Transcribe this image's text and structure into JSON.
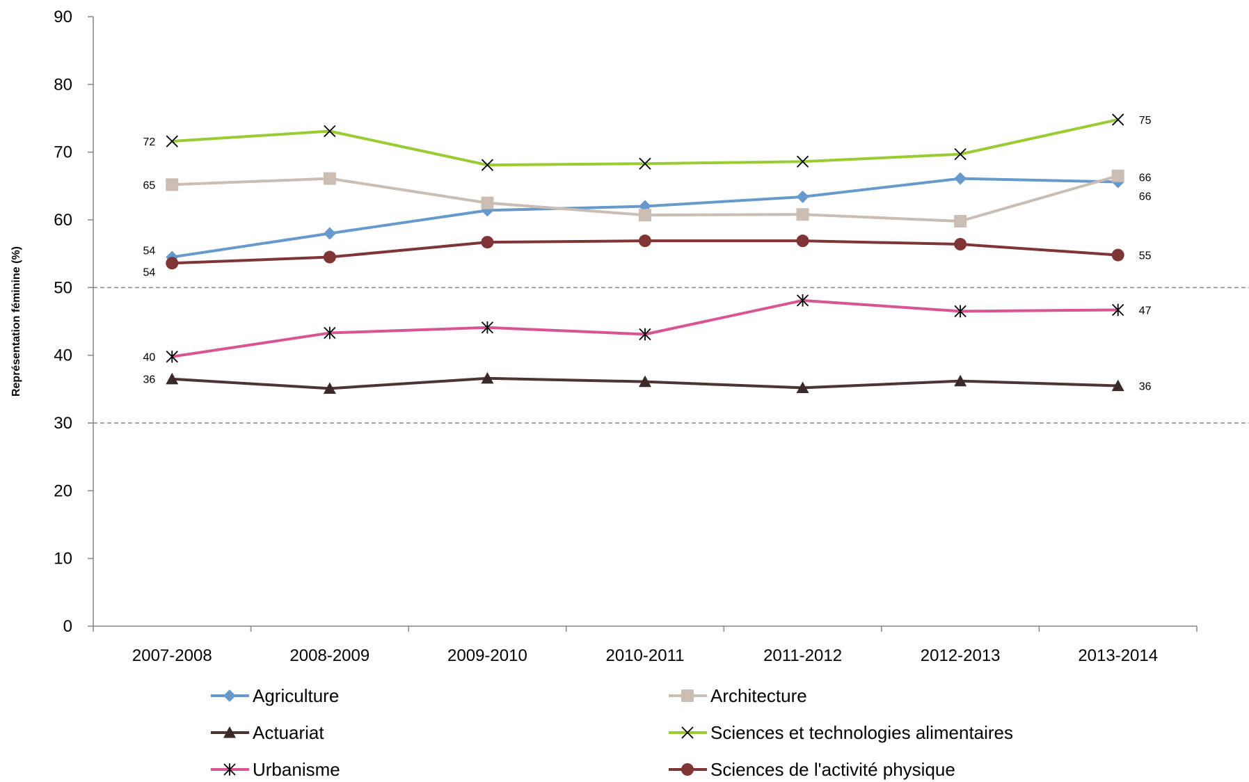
{
  "chart_data": {
    "type": "line",
    "title": "",
    "xlabel": "",
    "ylabel": "Représentation féminine (%)",
    "ylim": [
      0,
      90
    ],
    "y_ticks": [
      "0",
      "10",
      "20",
      "30",
      "40",
      "50",
      "60",
      "70",
      "80",
      "90"
    ],
    "categories": [
      "2007-2008",
      "2008-2009",
      "2009-2010",
      "2010-2011",
      "2011-2012",
      "2012-2013",
      "2013-2014"
    ],
    "reference_lines": [
      30,
      50
    ],
    "legend_position": "bottom",
    "series": [
      {
        "name": "Agriculture",
        "color": "#6699cc",
        "marker": "diamond",
        "values": [
          54.5,
          58.0,
          61.4,
          62.0,
          63.4,
          66.1,
          65.6
        ],
        "labels": [
          "54",
          "",
          "",
          "",
          "",
          "",
          "66"
        ]
      },
      {
        "name": "Architecture",
        "color": "#c9bdb4",
        "marker": "square",
        "values": [
          65.2,
          66.1,
          62.5,
          60.7,
          60.8,
          59.8,
          66.5
        ],
        "labels": [
          "65",
          "",
          "",
          "",
          "",
          "",
          "66"
        ]
      },
      {
        "name": "Actuariat",
        "color": "#4d3535",
        "marker": "triangle",
        "values": [
          36.5,
          35.1,
          36.6,
          36.1,
          35.2,
          36.2,
          35.5
        ],
        "labels": [
          "36",
          "",
          "",
          "",
          "",
          "",
          "36"
        ]
      },
      {
        "name": "Sciences et technologies alimentaires",
        "color": "#99cc33",
        "marker": "x",
        "values": [
          71.6,
          73.1,
          68.1,
          68.3,
          68.6,
          69.7,
          74.8
        ],
        "labels": [
          "72",
          "",
          "",
          "",
          "",
          "",
          "75"
        ]
      },
      {
        "name": "Urbanisme",
        "color": "#d95592",
        "marker": "star",
        "values": [
          39.8,
          43.3,
          44.1,
          43.1,
          48.1,
          46.5,
          46.7
        ],
        "labels": [
          "40",
          "",
          "",
          "",
          "",
          "",
          "47"
        ]
      },
      {
        "name": "Sciences de l'activité physique",
        "color": "#7f3535",
        "marker": "circle",
        "values": [
          53.6,
          54.5,
          56.7,
          56.9,
          56.9,
          56.4,
          54.8
        ],
        "labels": [
          "54",
          "",
          "",
          "",
          "",
          "",
          "55"
        ]
      }
    ]
  }
}
